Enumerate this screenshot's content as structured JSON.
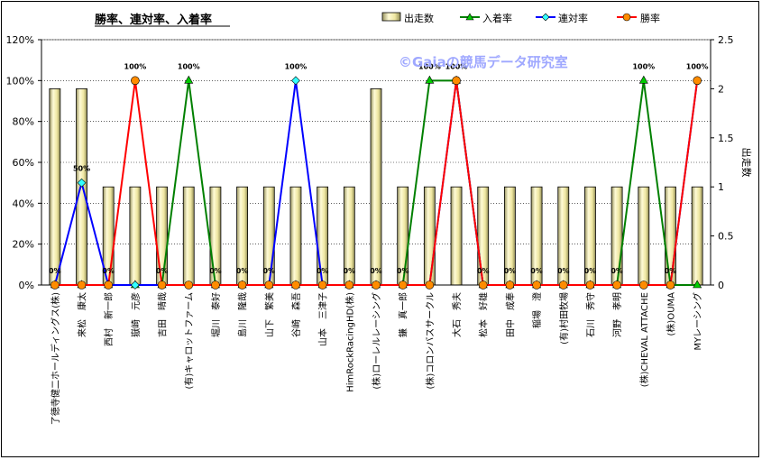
{
  "chart_data": {
    "type": "bar",
    "title": "勝率、連対率、入着率",
    "watermark": "©Gaiaの競馬データ研究室",
    "y2label": "出走数",
    "ylim": [
      0,
      1.2
    ],
    "y2lim": [
      0,
      2.5
    ],
    "yticks": [
      "0%",
      "20%",
      "40%",
      "60%",
      "80%",
      "100%",
      "120%"
    ],
    "y2ticks": [
      "0",
      "0.5",
      "1",
      "1.5",
      "2",
      "2.5"
    ],
    "categories": [
      "了徳寺健二ホールディングス(株)",
      "来松　康太",
      "西村　新一郎",
      "嶽崎　元彦",
      "吉田　晴哉",
      "(有)キャロットファーム",
      "堀川　泰好",
      "島川　隆哉",
      "山下　繁美",
      "谷崎　森吾",
      "山本　三津子",
      "HimRockRacingHD(株)",
      "(株)ローレルレーシング",
      "鎌　真一郎",
      "(株)コロンバスサークル",
      "大石　秀夫",
      "松本　好雄",
      "田中　成奉",
      "稲場　澄",
      "(有)村田牧場",
      "石川　秀守",
      "河野　孝明",
      "(株)CHEVAL ATTACHE",
      "(株)OUMA",
      "MYレーシング"
    ],
    "series": [
      {
        "name": "出走数",
        "type": "bar",
        "axis": "right",
        "color": "#efe9a6",
        "values": [
          2,
          2,
          1,
          1,
          1,
          1,
          1,
          1,
          1,
          1,
          1,
          1,
          2,
          1,
          1,
          1,
          1,
          1,
          1,
          1,
          1,
          1,
          1,
          1,
          1
        ]
      },
      {
        "name": "入着率",
        "type": "line",
        "axis": "left",
        "color": "#008000",
        "values": [
          0,
          0,
          0,
          0,
          0,
          1,
          0,
          0,
          0,
          0,
          0,
          0,
          0,
          0,
          1,
          1,
          0,
          0,
          0,
          0,
          0,
          0,
          1,
          0,
          0
        ]
      },
      {
        "name": "連対率",
        "type": "line",
        "axis": "left",
        "color": "#0000ff",
        "values": [
          0,
          0.5,
          0,
          0,
          0,
          0,
          0,
          0,
          0,
          1,
          0,
          0,
          0,
          0,
          0,
          1,
          0,
          0,
          0,
          0,
          0,
          0,
          0,
          0,
          1
        ]
      },
      {
        "name": "勝率",
        "type": "line",
        "axis": "left",
        "color": "#ff0000",
        "values": [
          0,
          0,
          0,
          1,
          0,
          0,
          0,
          0,
          0,
          0,
          0,
          0,
          0,
          0,
          0,
          1,
          0,
          0,
          0,
          0,
          0,
          0,
          0,
          0,
          1
        ]
      }
    ],
    "data_labels": [
      "0%",
      "50%",
      "0%",
      "100%",
      "0%",
      "100%",
      "0%",
      "0%",
      "0%",
      "100%",
      "0%",
      "0%",
      "0%",
      "0%",
      "100%",
      "100%",
      "0%",
      "0%",
      "0%",
      "0%",
      "0%",
      "0%",
      "100%",
      "0%",
      "100%"
    ],
    "legend_position": "top"
  }
}
